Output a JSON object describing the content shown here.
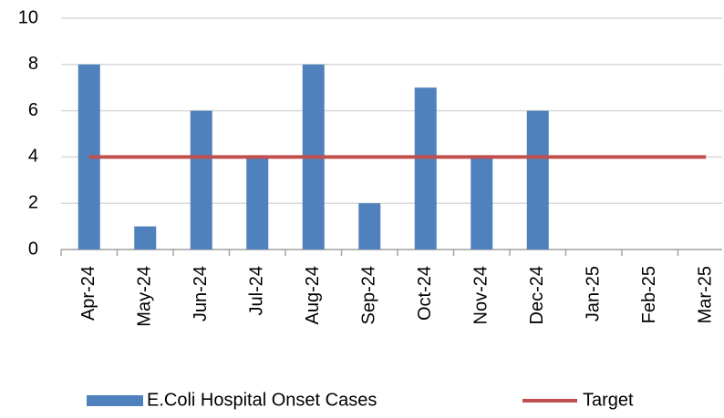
{
  "chart_data": {
    "type": "bar",
    "categories": [
      "Apr-24",
      "May-24",
      "Jun-24",
      "Jul-24",
      "Aug-24",
      "Sep-24",
      "Oct-24",
      "Nov-24",
      "Dec-24",
      "Jan-25",
      "Feb-25",
      "Mar-25"
    ],
    "series": [
      {
        "name": "E.Coli Hospital Onset Cases",
        "type": "bar",
        "color": "#4f81bd",
        "values": [
          8,
          1,
          6,
          4,
          8,
          2,
          7,
          4,
          6,
          null,
          null,
          null
        ]
      },
      {
        "name": "Target",
        "type": "line",
        "color": "#c0504d",
        "values": [
          4,
          4,
          4,
          4,
          4,
          4,
          4,
          4,
          4,
          4,
          4,
          4
        ]
      }
    ],
    "ylim": [
      0,
      10
    ],
    "yticks": [
      0,
      2,
      4,
      6,
      8,
      10
    ],
    "grid": true,
    "legend": "bottom"
  }
}
